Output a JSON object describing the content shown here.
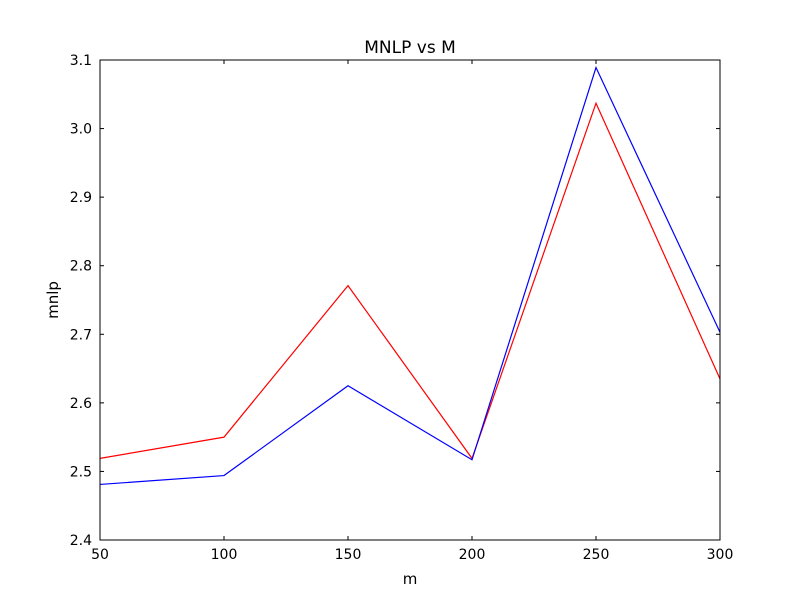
{
  "chart_data": {
    "type": "line",
    "title": "MNLP vs M",
    "xlabel": "m",
    "ylabel": "mnlp",
    "x": [
      50,
      100,
      150,
      200,
      250,
      300
    ],
    "xlim": [
      50,
      300
    ],
    "ylim": [
      2.4,
      3.1
    ],
    "xticks": [
      "50",
      "100",
      "150",
      "200",
      "250",
      "300"
    ],
    "yticks": [
      "2.4",
      "2.5",
      "2.6",
      "2.7",
      "2.8",
      "2.9",
      "3.0",
      "3.1"
    ],
    "grid": false,
    "series": [
      {
        "color": "#ff0000",
        "values": [
          2.519,
          2.55,
          2.771,
          2.519,
          3.037,
          2.635
        ]
      },
      {
        "color": "#0000ff",
        "values": [
          2.481,
          2.494,
          2.625,
          2.517,
          3.089,
          2.703
        ]
      }
    ]
  }
}
